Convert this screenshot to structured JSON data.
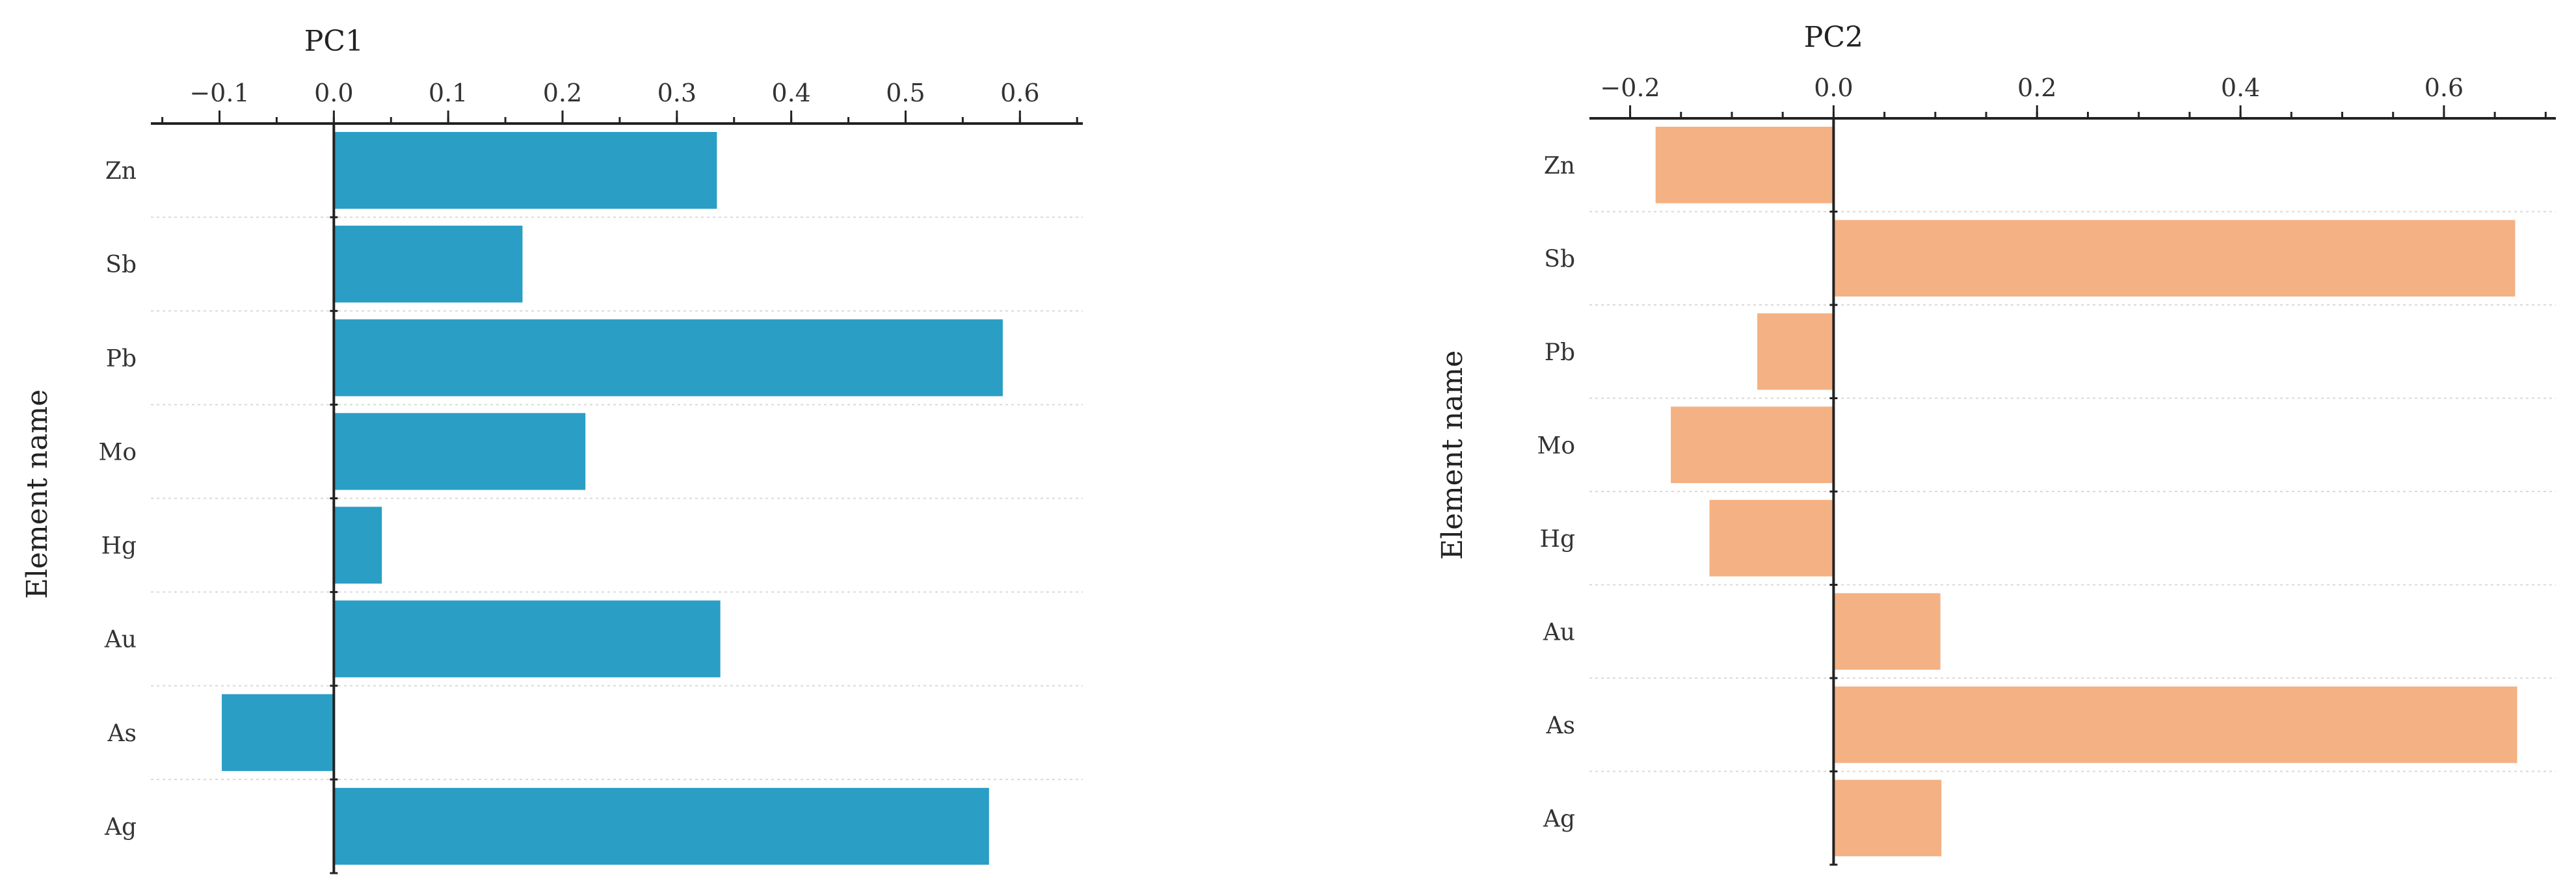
{
  "chart_data": [
    {
      "type": "bar",
      "orientation": "horizontal",
      "title": "PC1",
      "ylabel": "Element name",
      "categories": [
        "Zn",
        "Sb",
        "Pb",
        "Mo",
        "Hg",
        "Au",
        "As",
        "Ag"
      ],
      "values": [
        0.335,
        0.165,
        0.585,
        0.22,
        0.042,
        0.338,
        -0.098,
        0.573
      ],
      "xlim": [
        -0.16,
        0.655
      ],
      "major_ticks": [
        -0.1,
        0.0,
        0.1,
        0.2,
        0.3,
        0.4,
        0.5,
        0.6
      ],
      "tick_labels": [
        "−0.1",
        "0.0",
        "0.1",
        "0.2",
        "0.3",
        "0.4",
        "0.5",
        "0.6"
      ],
      "minor_step": 0.05,
      "color": "#2a9ec5",
      "grid": "dashed-horizontal"
    },
    {
      "type": "bar",
      "orientation": "horizontal",
      "title": "PC2",
      "ylabel": "Element name",
      "categories": [
        "Zn",
        "Sb",
        "Pb",
        "Mo",
        "Hg",
        "Au",
        "As",
        "Ag"
      ],
      "values": [
        -0.175,
        0.67,
        -0.075,
        -0.16,
        -0.122,
        0.105,
        0.672,
        0.106
      ],
      "xlim": [
        -0.24,
        0.71
      ],
      "major_ticks": [
        -0.2,
        0.0,
        0.2,
        0.4,
        0.6
      ],
      "tick_labels": [
        "−0.2",
        "0.0",
        "0.2",
        "0.4",
        "0.6"
      ],
      "minor_step": 0.05,
      "color": "#f4b183",
      "grid": "dashed-horizontal"
    }
  ]
}
